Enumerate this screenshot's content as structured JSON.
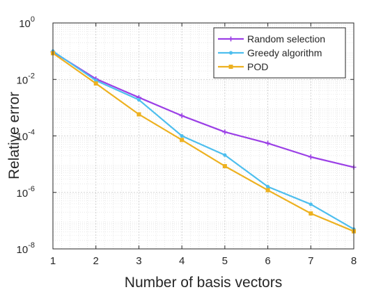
{
  "chart_data": {
    "type": "line",
    "title": "",
    "xlabel": "Number of basis vectors",
    "ylabel": "Relative error",
    "x": [
      1,
      2,
      3,
      4,
      5,
      6,
      7,
      8
    ],
    "xlim": [
      1,
      8
    ],
    "ylim": [
      1e-08,
      1
    ],
    "yscale": "log",
    "grid": true,
    "minor_grid": true,
    "legend_position": "top-right",
    "x_ticks": [
      "1",
      "2",
      "3",
      "4",
      "5",
      "6",
      "7",
      "8"
    ],
    "y_ticks": [
      {
        "value": 1e-08,
        "base": "10",
        "exp": "-8"
      },
      {
        "value": 1e-06,
        "base": "10",
        "exp": "-6"
      },
      {
        "value": 0.0001,
        "base": "10",
        "exp": "-4"
      },
      {
        "value": 0.01,
        "base": "10",
        "exp": "-2"
      },
      {
        "value": 1,
        "base": "10",
        "exp": "0"
      }
    ],
    "series": [
      {
        "name": "Random selection",
        "color": "#9B3FE6",
        "marker": "plus",
        "values": [
          0.095,
          0.0105,
          0.0023,
          0.00052,
          0.000138,
          5.5e-05,
          1.8e-05,
          7.8e-06
        ]
      },
      {
        "name": "Greedy algorithm",
        "color": "#4DBEEE",
        "marker": "dot",
        "values": [
          0.1,
          0.0092,
          0.0019,
          0.0001,
          2.1e-05,
          1.6e-06,
          3.8e-07,
          5e-08
        ]
      },
      {
        "name": "POD",
        "color": "#EDB120",
        "marker": "square",
        "values": [
          0.085,
          0.0072,
          0.00058,
          7.2e-05,
          8.5e-06,
          1.2e-06,
          1.8e-07,
          4.2e-08
        ]
      }
    ]
  }
}
